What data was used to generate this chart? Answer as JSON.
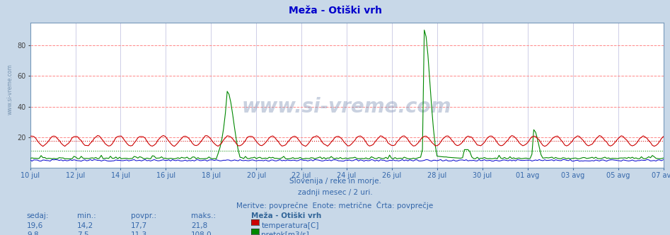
{
  "title": "Meža - Otiški vrh",
  "title_color": "#0000cc",
  "bg_color": "#c8d8e8",
  "plot_bg_color": "#ffffff",
  "grid_color_h": "#ff8888",
  "grid_color_v": "#ddddee",
  "ylim": [
    0,
    95
  ],
  "yticks": [
    20,
    40,
    60,
    80
  ],
  "x_labels": [
    "10 jul",
    "12 jul",
    "14 jul",
    "16 jul",
    "18 jul",
    "20 jul",
    "22 jul",
    "24 jul",
    "26 jul",
    "28 jul",
    "30 jul",
    "01 avg",
    "03 avg",
    "05 avg",
    "07 avg"
  ],
  "x_label_color": "#3366aa",
  "subtitle1": "Slovenija / reke in morje.",
  "subtitle2": "zadnji mesec / 2 uri.",
  "subtitle3": "Meritve: povprečne  Enote: metrične  Črta: povprečje",
  "subtitle_color": "#3366aa",
  "watermark": "www.si-vreme.com",
  "legend_title": "Meža - Otiški vrh",
  "legend_title_color": "#336699",
  "temp_color": "#cc0000",
  "flow_color": "#008800",
  "height_color": "#0000cc",
  "temp_avg": 17.7,
  "flow_avg": 11.3,
  "table_header_color": "#3366aa",
  "stats_color": "#3366aa",
  "temp_sedaj": "19,6",
  "temp_min": "14,2",
  "temp_povpr": "17,7",
  "temp_maks": "21,8",
  "flow_sedaj": "9,8",
  "flow_min": "7,5",
  "flow_povpr": "11,3",
  "flow_maks": "108,0"
}
